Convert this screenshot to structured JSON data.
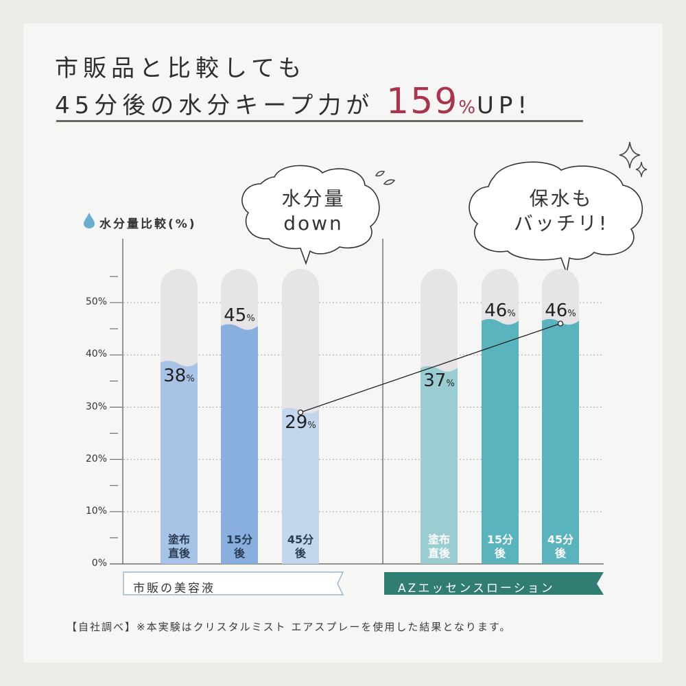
{
  "title": {
    "line1": "市販品と比較しても",
    "line2_prefix": "45分後の水分キープ力が",
    "highlight_number": "159",
    "highlight_unit": "%",
    "line2_suffix": "UP!"
  },
  "legend": {
    "title": "水分量比較(%)"
  },
  "bubbles": {
    "left": {
      "line1": "水分量",
      "line2": "down"
    },
    "right": {
      "line1": "保水も",
      "line2": "バッチリ!"
    }
  },
  "groups": {
    "left": {
      "label": "市販の美容液",
      "color": "#ffffff",
      "border": "#9bb4cc"
    },
    "right": {
      "label": "AZエッセンスローション",
      "color": "#2f7d73"
    }
  },
  "footnote": "【自社調べ】※本実験はクリスタルミスト エアスプレーを使用した結果となります。",
  "colors": {
    "accent": "#a8344e",
    "bar_track": "#e6e4e6",
    "left_bars": [
      "#a7c3e6",
      "#88afdd",
      "#c4d6ee"
    ],
    "right_bars": [
      "#99cdd2",
      "#5ab4bd",
      "#5ab4bd"
    ]
  },
  "chart_data": {
    "type": "bar",
    "title": "水分量比較(%)",
    "ylabel": "%",
    "ylim": [
      0,
      60
    ],
    "yticks": [
      "0%",
      "10%",
      "20%",
      "30%",
      "40%",
      "50%"
    ],
    "unit": "%",
    "series": [
      {
        "name": "市販の美容液",
        "categories": [
          "塗布\n直後",
          "15分\n後",
          "45分\n後"
        ],
        "values": [
          38,
          45,
          29
        ]
      },
      {
        "name": "AZエッセンスローション",
        "categories": [
          "塗布\n直後",
          "15分\n後",
          "45分\n後"
        ],
        "values": [
          37,
          46,
          46
        ]
      }
    ],
    "annotation": "45分後の比較線 29% → 46%"
  }
}
